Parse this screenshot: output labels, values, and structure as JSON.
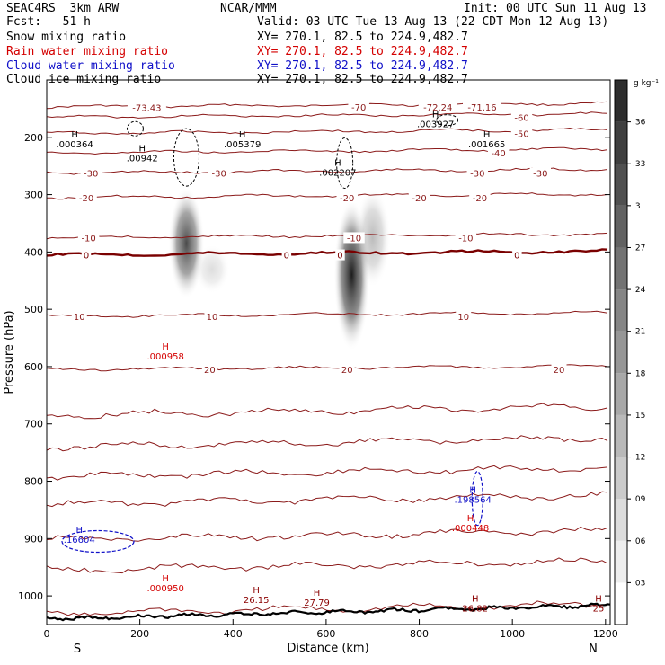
{
  "header": {
    "model": "SEAC4RS  3km ARW",
    "center": "NCAR/MMM",
    "init": "Init: 00 UTC Sun 11 Aug 13",
    "fcst": "Fcst:   51 h",
    "valid": "Valid: 03 UTC Tue 13 Aug 13 (22 CDT Mon 12 Aug 13)",
    "fields": [
      {
        "name": "Snow mixing ratio",
        "xy": "XY= 270.1, 82.5 to 224.9,482.7",
        "color": "#000000"
      },
      {
        "name": "Rain water mixing ratio",
        "xy": "XY= 270.1, 82.5 to 224.9,482.7",
        "color": "#d40000"
      },
      {
        "name": "Cloud water mixing ratio",
        "xy": "XY= 270.1, 82.5 to 224.9,482.7",
        "color": "#1010c8"
      },
      {
        "name": "Cloud ice mixing ratio",
        "xy": "XY= 270.1, 82.5 to 224.9,482.7",
        "color": "#000000"
      }
    ]
  },
  "chart_data": {
    "type": "heatmap",
    "xlabel": "Distance (km)",
    "ylabel": "Pressure (hPa)",
    "xlim": [
      0,
      1210
    ],
    "ylim": [
      1050,
      100
    ],
    "x_ticks": [
      0,
      200,
      400,
      600,
      800,
      1000,
      1200
    ],
    "y_ticks": [
      200,
      300,
      400,
      500,
      600,
      700,
      800,
      900,
      1000
    ],
    "end_labels": {
      "left": "S",
      "right": "N"
    },
    "colorbar": {
      "unit": "g kg⁻¹",
      "ticks": [
        ".03",
        ".06",
        ".09",
        ".12",
        ".15",
        ".18",
        ".21",
        ".24",
        ".27",
        ".3",
        ".33",
        ".36"
      ],
      "tick_values": [
        0.03,
        0.06,
        0.09,
        0.12,
        0.15,
        0.18,
        0.21,
        0.24,
        0.27,
        0.3,
        0.33,
        0.36
      ],
      "max": 0.39
    },
    "plumes": [
      {
        "x": 300,
        "p_top": 300,
        "p_bot": 470,
        "intensity": 0.8
      },
      {
        "x": 355,
        "p_top": 400,
        "p_bot": 460,
        "intensity": 0.15
      },
      {
        "x": 655,
        "p_top": 320,
        "p_bot": 560,
        "intensity": 1.0
      },
      {
        "x": 700,
        "p_top": 300,
        "p_bot": 450,
        "intensity": 0.3
      }
    ],
    "temperature_contours": [
      {
        "value": -70,
        "p": 147
      },
      {
        "value": -60,
        "p": 165
      },
      {
        "value": -50,
        "p": 193
      },
      {
        "value": -40,
        "p": 227
      },
      {
        "value": -30,
        "p": 262
      },
      {
        "value": -20,
        "p": 305
      },
      {
        "value": -10,
        "p": 375
      },
      {
        "value": 0,
        "p": 405
      },
      {
        "value": 10,
        "p": 512
      },
      {
        "value": 20,
        "p": 605
      },
      {
        "value": null,
        "p": 685
      },
      {
        "value": null,
        "p": 740
      },
      {
        "value": null,
        "p": 792
      },
      {
        "value": null,
        "p": 840
      },
      {
        "value": null,
        "p": 902
      },
      {
        "value": null,
        "p": 955
      },
      {
        "value": null,
        "p": 1030
      }
    ],
    "contour_labels": [
      {
        "text": "-73.43",
        "x": 215,
        "p": 148,
        "kind": "temp"
      },
      {
        "text": "-70",
        "x": 670,
        "p": 147,
        "kind": "temp"
      },
      {
        "text": "-72.24",
        "x": 840,
        "p": 147,
        "kind": "temp"
      },
      {
        "text": "-71.16",
        "x": 935,
        "p": 147,
        "kind": "temp"
      },
      {
        "text": "-60",
        "x": 1020,
        "p": 165,
        "kind": "temp"
      },
      {
        "text": "-50",
        "x": 1020,
        "p": 193,
        "kind": "temp"
      },
      {
        "text": "-40",
        "x": 970,
        "p": 227,
        "kind": "temp"
      },
      {
        "text": "-30",
        "x": 95,
        "p": 262,
        "kind": "temp"
      },
      {
        "text": "-30",
        "x": 370,
        "p": 262,
        "kind": "temp"
      },
      {
        "text": "-30",
        "x": 925,
        "p": 262,
        "kind": "temp"
      },
      {
        "text": "-30",
        "x": 1060,
        "p": 262,
        "kind": "temp"
      },
      {
        "text": "-20",
        "x": 85,
        "p": 305,
        "kind": "temp"
      },
      {
        "text": "-20",
        "x": 645,
        "p": 305,
        "kind": "temp"
      },
      {
        "text": "-20",
        "x": 800,
        "p": 305,
        "kind": "temp"
      },
      {
        "text": "-20",
        "x": 930,
        "p": 305,
        "kind": "temp"
      },
      {
        "text": "-10",
        "x": 90,
        "p": 375,
        "kind": "temp"
      },
      {
        "text": "-10",
        "x": 660,
        "p": 375,
        "kind": "temp"
      },
      {
        "text": "-10",
        "x": 900,
        "p": 375,
        "kind": "temp"
      },
      {
        "text": "0",
        "x": 85,
        "p": 405,
        "kind": "zero"
      },
      {
        "text": "0",
        "x": 515,
        "p": 405,
        "kind": "zero"
      },
      {
        "text": "0",
        "x": 630,
        "p": 405,
        "kind": "zero"
      },
      {
        "text": "0",
        "x": 1010,
        "p": 405,
        "kind": "zero"
      },
      {
        "text": "10",
        "x": 70,
        "p": 512,
        "kind": "temp"
      },
      {
        "text": "10",
        "x": 355,
        "p": 512,
        "kind": "temp"
      },
      {
        "text": "10",
        "x": 895,
        "p": 512,
        "kind": "temp"
      },
      {
        "text": "20",
        "x": 350,
        "p": 605,
        "kind": "temp"
      },
      {
        "text": "20",
        "x": 645,
        "p": 605,
        "kind": "temp"
      },
      {
        "text": "20",
        "x": 1100,
        "p": 605,
        "kind": "temp"
      }
    ],
    "extrema_labels": [
      {
        "mark": "H",
        "value": ".000364",
        "x": 60,
        "p": 200,
        "color": "#000000"
      },
      {
        "mark": "H",
        "value": ".00942",
        "x": 205,
        "p": 225,
        "color": "#000000"
      },
      {
        "mark": "H",
        "value": ".005379",
        "x": 420,
        "p": 200,
        "color": "#000000"
      },
      {
        "mark": "H",
        "value": ".002207",
        "x": 625,
        "p": 250,
        "color": "#000000"
      },
      {
        "mark": "H",
        "value": ".003927",
        "x": 835,
        "p": 165,
        "color": "#000000"
      },
      {
        "mark": "H",
        "value": ".001665",
        "x": 945,
        "p": 200,
        "color": "#000000"
      },
      {
        "mark": "H",
        "value": ".000958",
        "x": 255,
        "p": 570,
        "color": "#d40000"
      },
      {
        "mark": "H",
        "value": ".198564",
        "x": 915,
        "p": 820,
        "color": "#1010c8"
      },
      {
        "mark": "H",
        "value": ".000448",
        "x": 910,
        "p": 870,
        "color": "#d40000"
      },
      {
        "mark": "H",
        "value": ".16604",
        "x": 70,
        "p": 890,
        "color": "#1010c8"
      },
      {
        "mark": "H",
        "value": ".000950",
        "x": 255,
        "p": 975,
        "color": "#d40000"
      },
      {
        "mark": "H",
        "value": "26.15",
        "x": 450,
        "p": 995,
        "color": "#8b0000"
      },
      {
        "mark": "H",
        "value": "27.79",
        "x": 580,
        "p": 1000,
        "color": "#8b0000"
      },
      {
        "mark": "H",
        "value": "26.82",
        "x": 920,
        "p": 1010,
        "color": "#8b0000"
      },
      {
        "mark": "H",
        "value": "25",
        "x": 1185,
        "p": 1010,
        "color": "#8b0000"
      }
    ]
  }
}
